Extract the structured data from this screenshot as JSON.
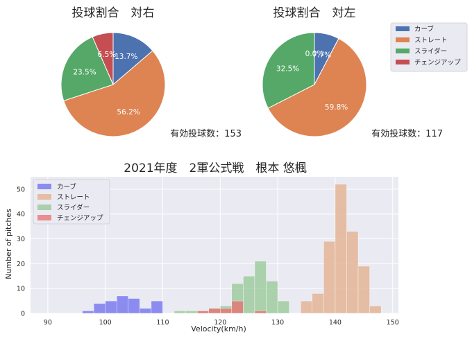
{
  "pie_right": {
    "title": "投球割合　対右",
    "note": "有効投球数：153"
  },
  "pie_left": {
    "title": "投球割合　対左",
    "note": "有効投球数：117"
  },
  "hist": {
    "title": "2021年度　2軍公式戦　根本 悠楓",
    "xlabel": "Velocity(km/h)",
    "ylabel": "Number of pitches"
  },
  "colors": {
    "curve": "#4C72B0",
    "straight": "#DD8452",
    "slider": "#55A868",
    "change": "#C44E52",
    "hist_curve": "#7b7bf0",
    "hist_straight": "#e3b597",
    "hist_slider": "#8fc48f",
    "hist_change": "#e86e6e",
    "axes_bg": "#EAEAF2"
  },
  "chart_data": [
    {
      "type": "pie",
      "title": "投球割合　対右",
      "labels": [
        "カーブ",
        "ストレート",
        "スライダー",
        "チェンジアップ"
      ],
      "values": [
        13.7,
        56.2,
        23.5,
        6.5
      ],
      "value_labels": [
        "13.7%",
        "56.2%",
        "23.5%",
        "6.5%"
      ],
      "annotation": "有効投球数：153"
    },
    {
      "type": "pie",
      "title": "投球割合　対左",
      "labels": [
        "カーブ",
        "ストレート",
        "スライダー",
        "チェンジアップ"
      ],
      "values": [
        7.7,
        59.8,
        32.5,
        0.0
      ],
      "value_labels": [
        "7.7%",
        "59.8%",
        "32.5%",
        "0.0%"
      ],
      "annotation": "有効投球数：117",
      "legend": "top-right"
    },
    {
      "type": "bar",
      "subtype": "histogram",
      "title": "2021年度　2軍公式戦　根本 悠楓",
      "xlabel": "Velocity(km/h)",
      "ylabel": "Number of pitches",
      "xlim": [
        87,
        151
      ],
      "ylim": [
        0,
        55
      ],
      "xticks": [
        90,
        100,
        110,
        120,
        130,
        140,
        150
      ],
      "yticks": [
        0,
        10,
        20,
        30,
        40,
        50
      ],
      "grid": true,
      "legend": "top-left",
      "series": [
        {
          "name": "カーブ",
          "bins": [
            [
              96,
              98,
              1
            ],
            [
              98,
              100,
              4
            ],
            [
              100,
              102,
              5
            ],
            [
              102,
              104,
              7
            ],
            [
              104,
              106,
              6
            ],
            [
              106,
              108,
              2
            ],
            [
              108,
              110,
              5
            ]
          ]
        },
        {
          "name": "ストレート",
          "bins": [
            [
              134,
              136,
              5
            ],
            [
              136,
              138,
              8
            ],
            [
              138,
              140,
              29
            ],
            [
              140,
              142,
              52
            ],
            [
              142,
              144,
              33
            ],
            [
              144,
              146,
              19
            ],
            [
              146,
              148,
              3
            ]
          ]
        },
        {
          "name": "スライダー",
          "bins": [
            [
              112,
              114,
              1
            ],
            [
              114,
              116,
              1
            ],
            [
              116,
              118,
              1
            ],
            [
              118,
              120,
              2
            ],
            [
              120,
              122,
              3
            ],
            [
              122,
              124,
              12
            ],
            [
              124,
              126,
              15
            ],
            [
              126,
              128,
              21
            ],
            [
              128,
              130,
              13
            ],
            [
              130,
              132,
              5
            ]
          ]
        },
        {
          "name": "チェンジアップ",
          "bins": [
            [
              116,
              118,
              1
            ],
            [
              118,
              120,
              2
            ],
            [
              120,
              122,
              2
            ],
            [
              122,
              124,
              5
            ],
            [
              126,
              128,
              1
            ]
          ]
        }
      ]
    }
  ]
}
